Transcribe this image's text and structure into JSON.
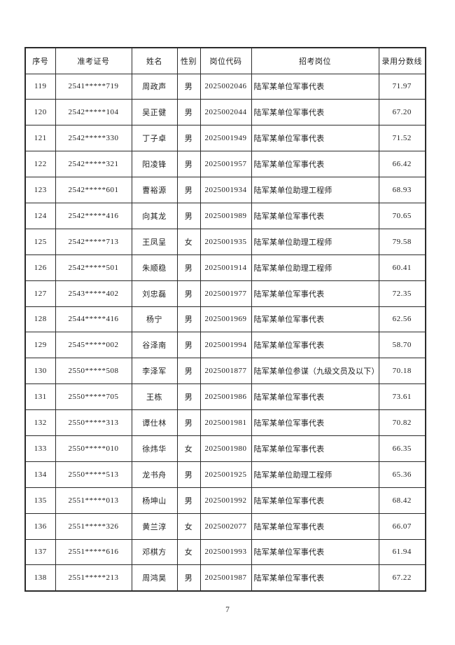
{
  "document": {
    "page_number": "7",
    "colors": {
      "background": "#ffffff",
      "text": "#1d1d1d",
      "border": "#2b2b2b"
    }
  },
  "table": {
    "columns": [
      {
        "key": "index",
        "label": "序号"
      },
      {
        "key": "ticket-number",
        "label": "准考证号"
      },
      {
        "key": "name",
        "label": "姓名"
      },
      {
        "key": "gender",
        "label": "性别"
      },
      {
        "key": "position-code",
        "label": "岗位代码"
      },
      {
        "key": "position",
        "label": "招考岗位"
      },
      {
        "key": "score",
        "label": "录用分数线"
      }
    ],
    "rows": [
      [
        "119",
        "2541*****719",
        "周政声",
        "男",
        "2025002046",
        "陆军某单位军事代表",
        "71.97"
      ],
      [
        "120",
        "2542*****104",
        "吴正健",
        "男",
        "2025002044",
        "陆军某单位军事代表",
        "67.20"
      ],
      [
        "121",
        "2542*****330",
        "丁子卓",
        "男",
        "2025001949",
        "陆军某单位军事代表",
        "71.52"
      ],
      [
        "122",
        "2542*****321",
        "阳凌锋",
        "男",
        "2025001957",
        "陆军某单位军事代表",
        "66.42"
      ],
      [
        "123",
        "2542*****601",
        "曹裕源",
        "男",
        "2025001934",
        "陆军某单位助理工程师",
        "68.93"
      ],
      [
        "124",
        "2542*****416",
        "向其龙",
        "男",
        "2025001989",
        "陆军某单位军事代表",
        "70.65"
      ],
      [
        "125",
        "2542*****713",
        "王凤呈",
        "女",
        "2025001935",
        "陆军某单位助理工程师",
        "79.58"
      ],
      [
        "126",
        "2542*****501",
        "朱顺稳",
        "男",
        "2025001914",
        "陆军某单位助理工程师",
        "60.41"
      ],
      [
        "127",
        "2543*****402",
        "刘忠磊",
        "男",
        "2025001977",
        "陆军某单位军事代表",
        "72.35"
      ],
      [
        "128",
        "2544*****416",
        "杨宁",
        "男",
        "2025001969",
        "陆军某单位军事代表",
        "62.56"
      ],
      [
        "129",
        "2545*****002",
        "谷泽南",
        "男",
        "2025001994",
        "陆军某单位军事代表",
        "58.70"
      ],
      [
        "130",
        "2550*****508",
        "李泽军",
        "男",
        "2025001877",
        "陆军某单位参谋（九级文员及以下）",
        "70.18"
      ],
      [
        "131",
        "2550*****705",
        "王栋",
        "男",
        "2025001986",
        "陆军某单位军事代表",
        "73.61"
      ],
      [
        "132",
        "2550*****313",
        "谭仕林",
        "男",
        "2025001981",
        "陆军某单位军事代表",
        "70.82"
      ],
      [
        "133",
        "2550*****010",
        "徐炜华",
        "女",
        "2025001980",
        "陆军某单位军事代表",
        "66.35"
      ],
      [
        "134",
        "2550*****513",
        "龙书舟",
        "男",
        "2025001925",
        "陆军某单位助理工程师",
        "65.36"
      ],
      [
        "135",
        "2551*****013",
        "杨坤山",
        "男",
        "2025001992",
        "陆军某单位军事代表",
        "68.42"
      ],
      [
        "136",
        "2551*****326",
        "黄兰淳",
        "女",
        "2025002077",
        "陆军某单位军事代表",
        "66.07"
      ],
      [
        "137",
        "2551*****616",
        "邓棋方",
        "女",
        "2025001993",
        "陆军某单位军事代表",
        "61.94"
      ],
      [
        "138",
        "2551*****213",
        "周鸿昊",
        "男",
        "2025001987",
        "陆军某单位军事代表",
        "67.22"
      ]
    ]
  }
}
